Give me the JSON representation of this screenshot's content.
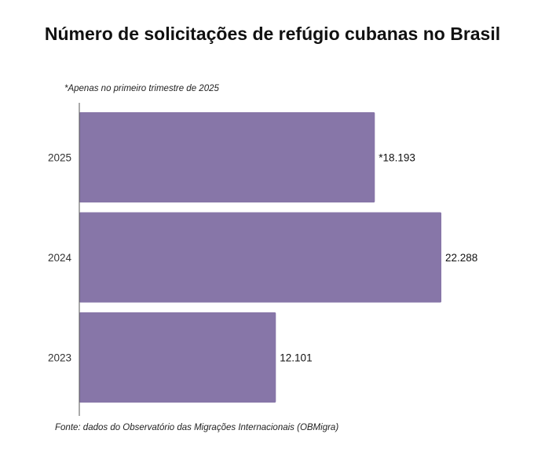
{
  "chart_data": {
    "type": "bar",
    "orientation": "horizontal",
    "title": "Número de solicitações de refúgio cubanas no Brasil",
    "note": "*Apenas no primeiro trimestre de   2025",
    "source": "Fonte: dados do Observatório das Migrações Internacionais (OBMigra)",
    "categories": [
      "2025",
      "2024",
      "2023"
    ],
    "values": [
      18193,
      22288,
      12101
    ],
    "data_labels": [
      "*18.193",
      "22.288",
      "12.101"
    ],
    "xlim": [
      0,
      22288
    ],
    "xlabel": "",
    "ylabel": "",
    "grid": false,
    "legend": "none",
    "colors": {
      "bar": "#8776a8",
      "axis": "#555555"
    }
  }
}
